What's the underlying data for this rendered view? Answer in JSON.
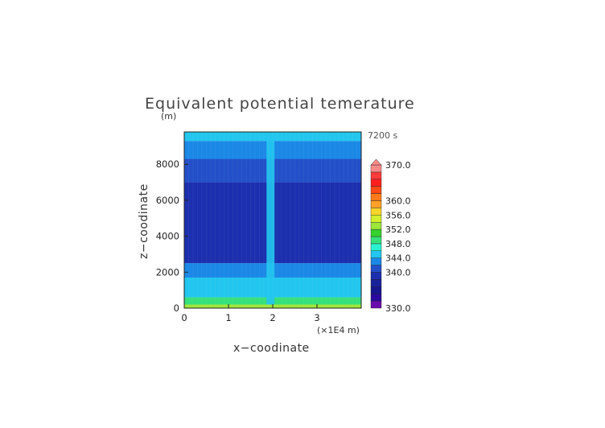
{
  "chart_data": {
    "type": "heatmap",
    "title": "Equivalent potential temerature",
    "time_label": "7200 s",
    "xlabel": "x−coodinate",
    "ylabel": "z−coodinate",
    "y_unit": "(m)",
    "x_unit": "(×1E4 m)",
    "xlim": [
      0,
      4
    ],
    "ylim": [
      0,
      9800
    ],
    "x_ticks": [
      0,
      1,
      2,
      3
    ],
    "y_ticks": [
      0,
      2000,
      4000,
      6000,
      8000
    ],
    "x_tick_labels": [
      "0",
      "1",
      "2",
      "3"
    ],
    "y_tick_labels": [
      "0",
      "2000",
      "4000",
      "6000",
      "8000"
    ],
    "colorbar": {
      "min": 330,
      "max": 370,
      "levels": [
        330,
        332,
        334,
        336,
        338,
        340,
        342,
        344,
        346,
        348,
        350,
        352,
        354,
        356,
        358,
        360,
        362,
        364,
        366,
        368,
        370
      ],
      "colors": [
        "#6a0dad",
        "#2a0a9e",
        "#17168f",
        "#19229b",
        "#1c2fae",
        "#2350c9",
        "#1b88e6",
        "#22c6ee",
        "#2af2d0",
        "#36e07b",
        "#36d12d",
        "#9ee63a",
        "#d4ef2b",
        "#ffd42a",
        "#ffa126",
        "#ff7a1a",
        "#ff4a17",
        "#ff1f1f",
        "#ff3b3b",
        "#ff8a8a"
      ],
      "tick_labels": [
        "370.0",
        "360.0",
        "356.0",
        "352.0",
        "348.0",
        "344.0",
        "340.0",
        "330.0"
      ]
    },
    "field_description_layers": [
      {
        "z_range": [
          0,
          200
        ],
        "value": 352
      },
      {
        "z_range": [
          200,
          600
        ],
        "value": 349
      },
      {
        "z_range": [
          600,
          1700
        ],
        "value": 345
      },
      {
        "z_range": [
          1700,
          2500
        ],
        "value": 343
      },
      {
        "z_range": [
          2500,
          7000
        ],
        "value": 339
      },
      {
        "z_range": [
          7000,
          8300
        ],
        "value": 341
      },
      {
        "z_range": [
          8300,
          9300
        ],
        "value": 342
      },
      {
        "z_range": [
          9300,
          9800
        ],
        "value": 344
      }
    ],
    "updraft_x": 1.95,
    "updraft_value": 345
  }
}
